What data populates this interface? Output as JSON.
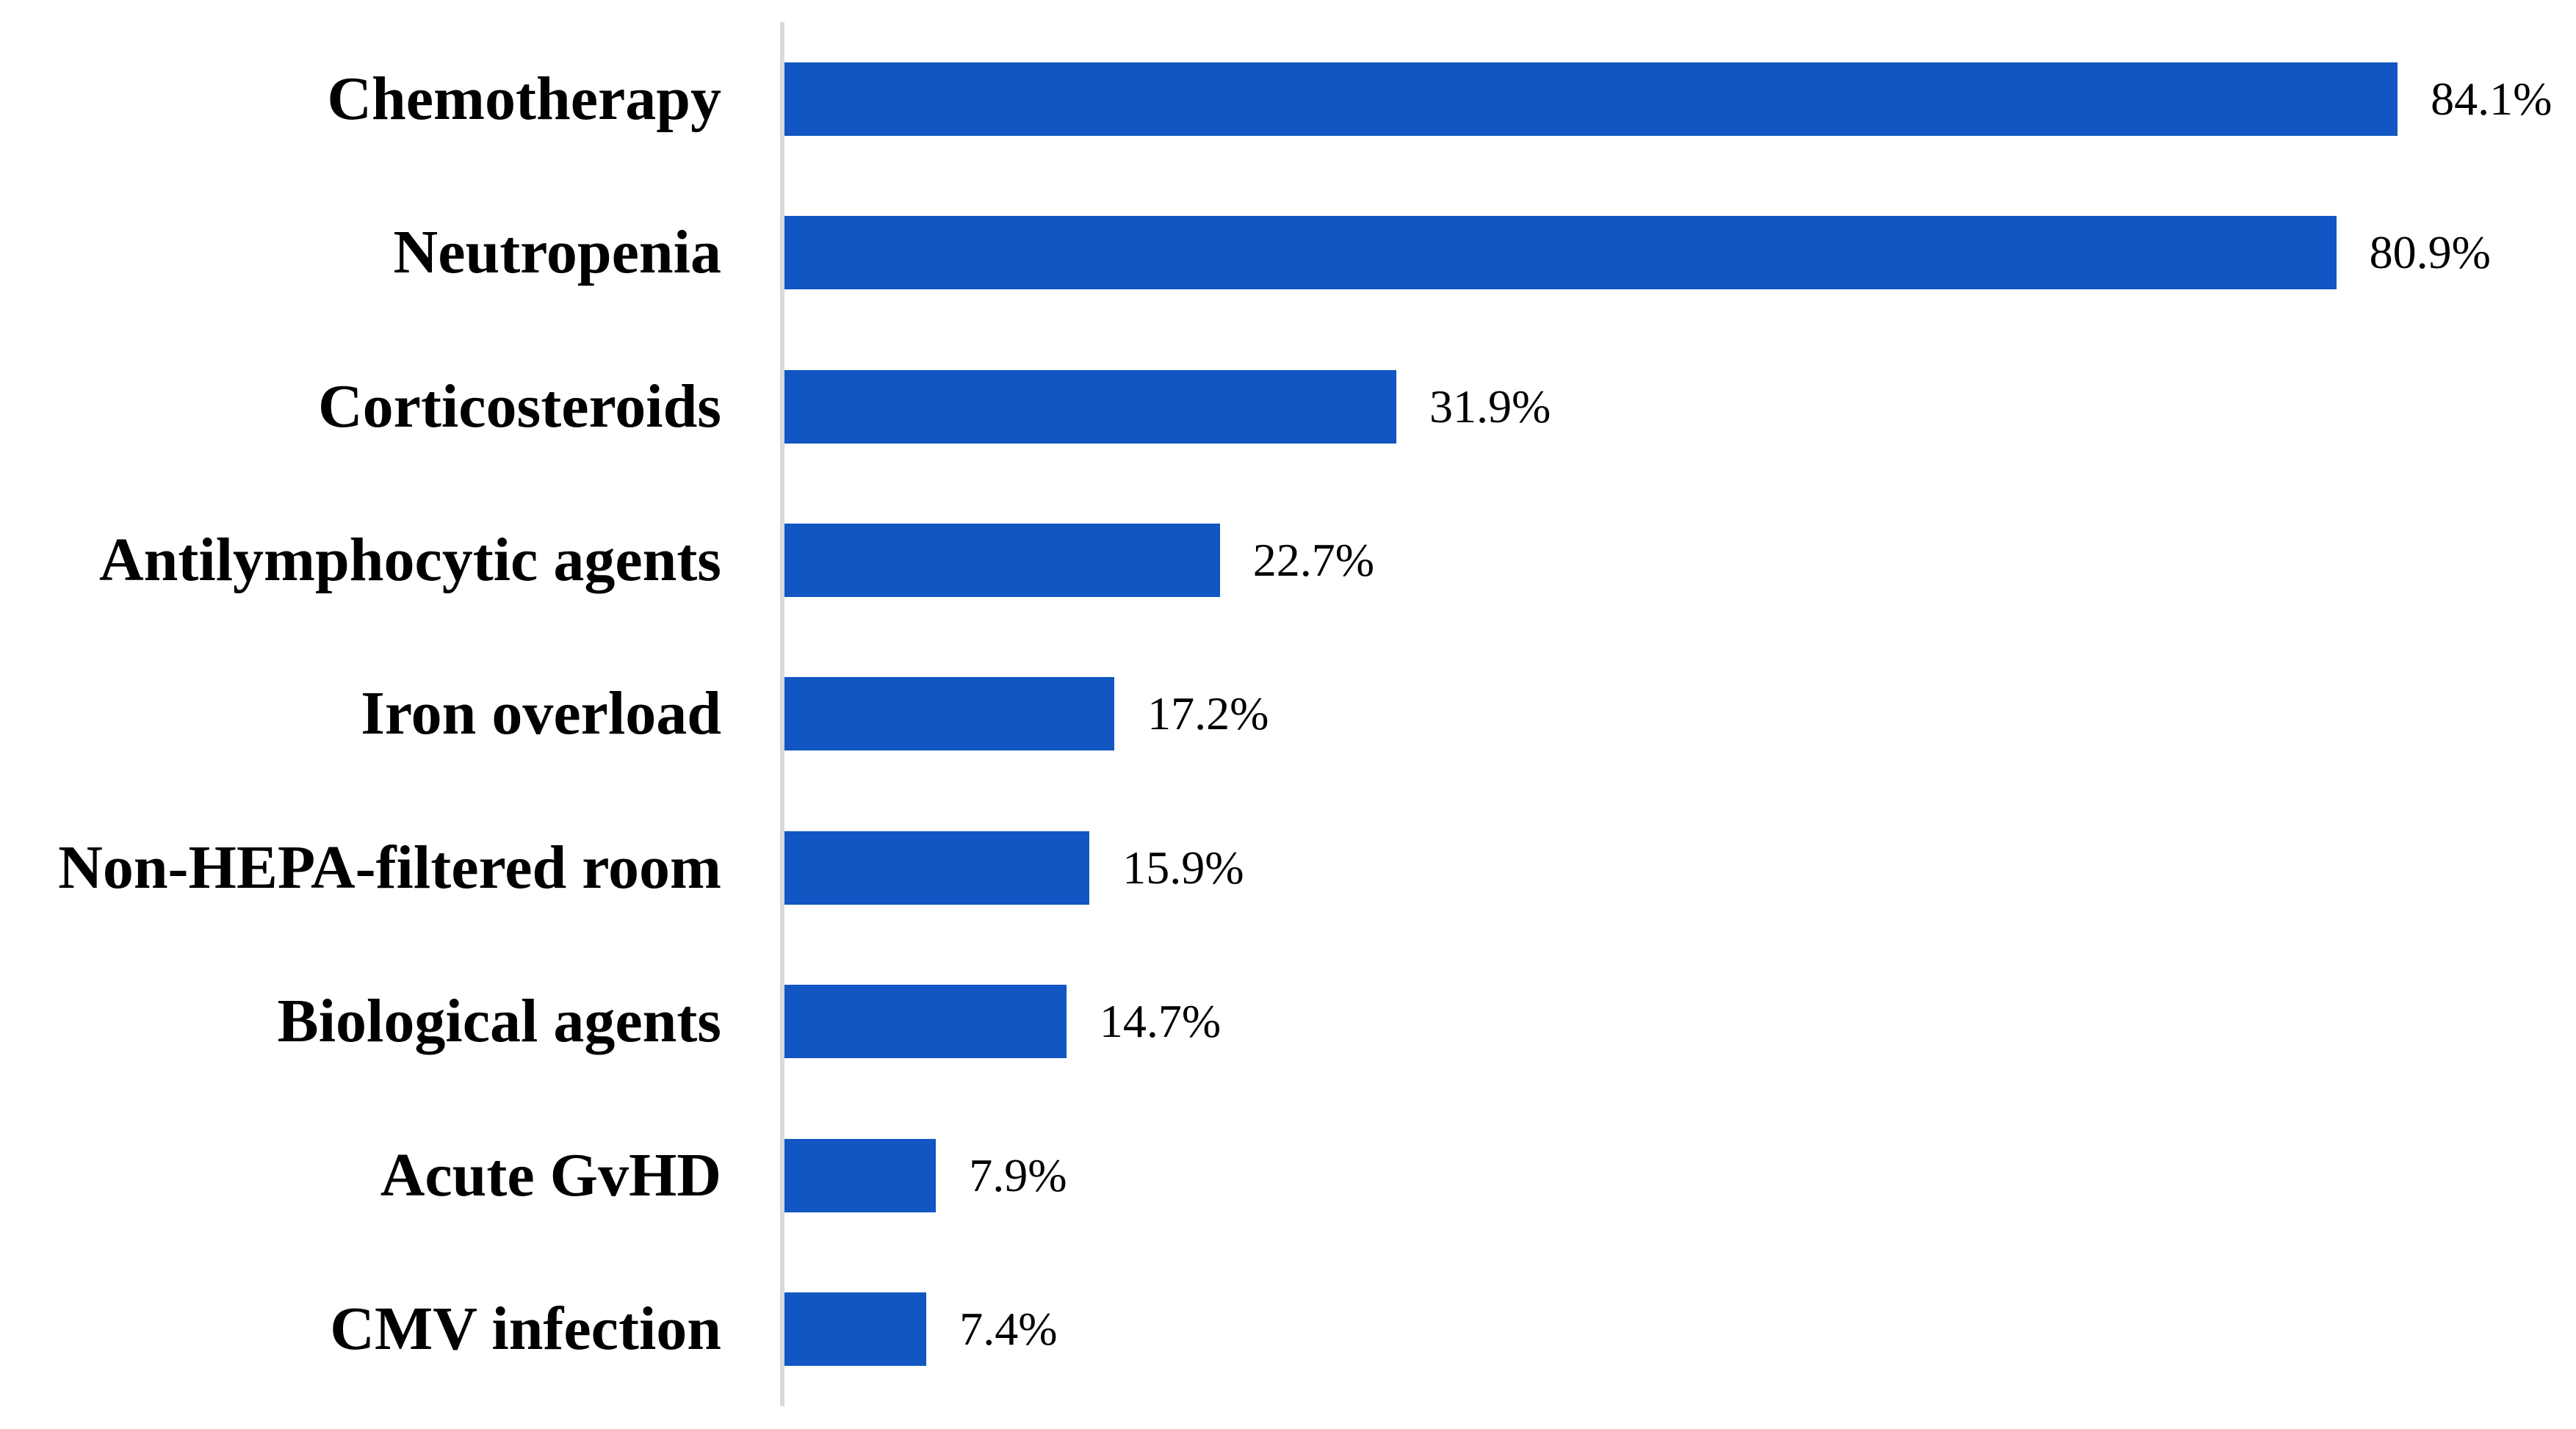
{
  "chart_data": {
    "type": "bar",
    "orientation": "horizontal",
    "title": "",
    "xlabel": "",
    "ylabel": "",
    "grid": false,
    "legend": false,
    "xlim": [
      0,
      93.4
    ],
    "bar_color": "#1156C2",
    "axis_line_color": "#D9D9D9",
    "text_color": "#000000",
    "categories": [
      "Chemotherapy",
      "Neutropenia",
      "Corticosteroids",
      "Antilymphocytic agents",
      "Iron overload",
      "Non-HEPA-filtered room",
      "Biological agents",
      "Acute GvHD",
      "CMV infection"
    ],
    "values": [
      84.1,
      80.9,
      31.9,
      22.7,
      17.2,
      15.9,
      14.7,
      7.9,
      7.4
    ],
    "rows": [
      {
        "category": "Chemotherapy",
        "value": 84.1,
        "display": "84.1%"
      },
      {
        "category": "Neutropenia",
        "value": 80.9,
        "display": "80.9%"
      },
      {
        "category": "Corticosteroids",
        "value": 31.9,
        "display": "31.9%"
      },
      {
        "category": "Antilymphocytic agents",
        "value": 22.7,
        "display": "22.7%"
      },
      {
        "category": "Iron overload",
        "value": 17.2,
        "display": "17.2%"
      },
      {
        "category": "Non-HEPA-filtered room",
        "value": 15.9,
        "display": "15.9%"
      },
      {
        "category": "Biological agents",
        "value": 14.7,
        "display": "14.7%"
      },
      {
        "category": "Acute GvHD",
        "value": 7.9,
        "display": "7.9%"
      },
      {
        "category": "CMV infection",
        "value": 7.4,
        "display": "7.4%"
      }
    ]
  }
}
